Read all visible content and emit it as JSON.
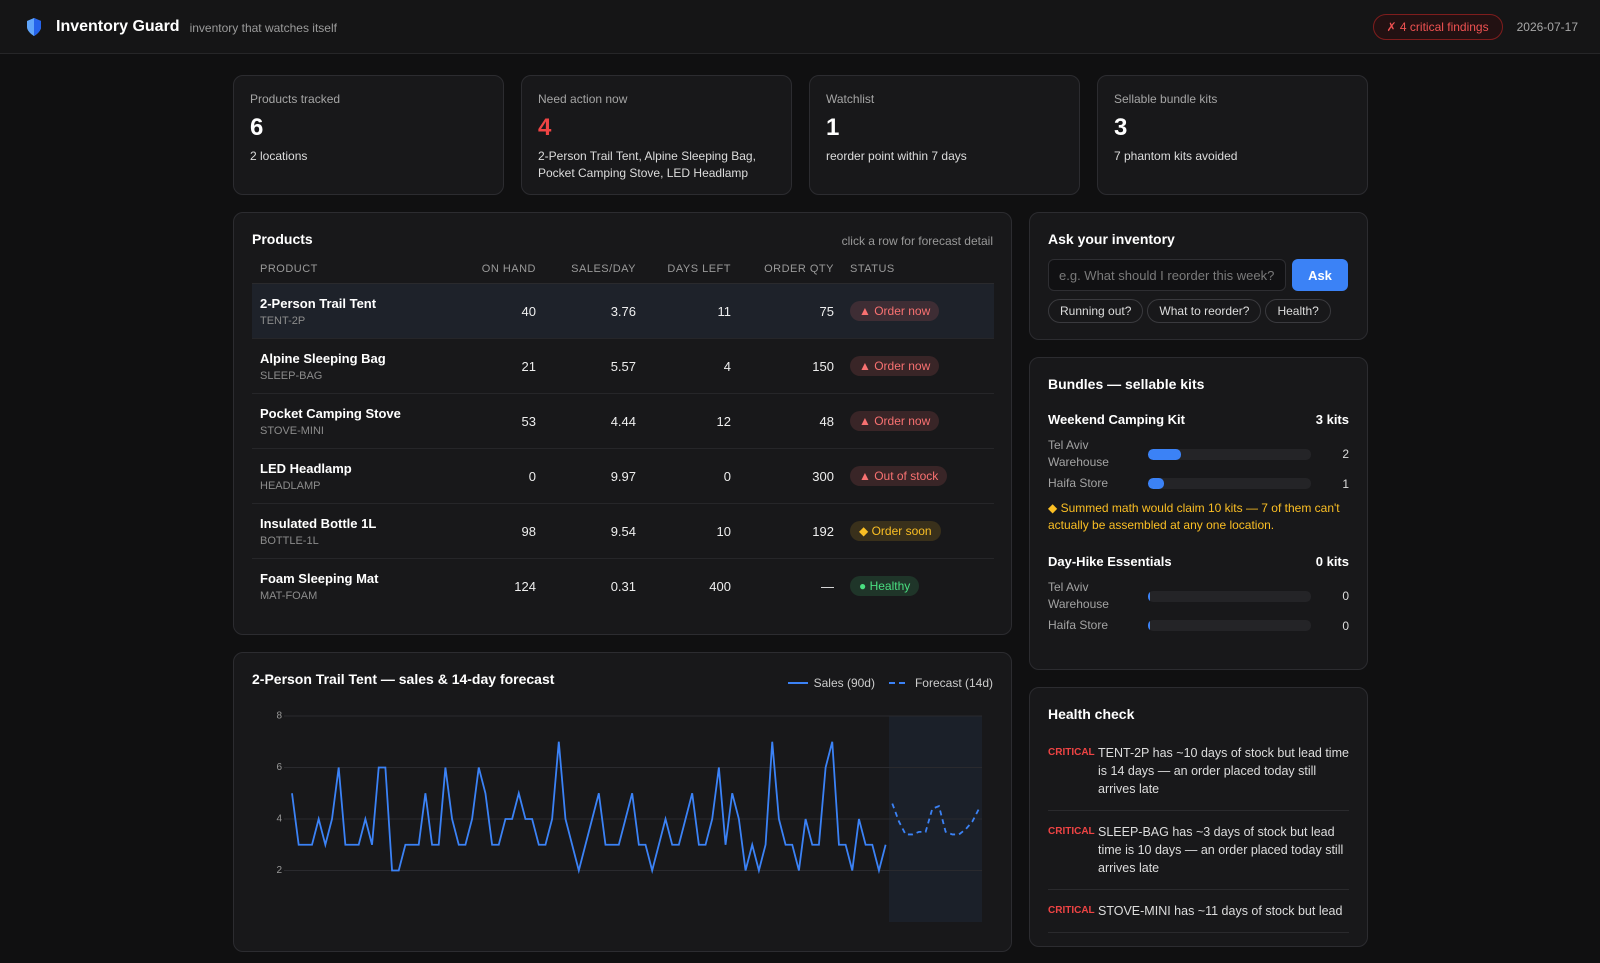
{
  "header": {
    "title": "Inventory Guard",
    "tagline": "inventory that watches itself",
    "alert": "✗ 4 critical findings",
    "date": "2026-07-17"
  },
  "stats": [
    {
      "label": "Products tracked",
      "value": 6,
      "detail": "2 locations"
    },
    {
      "label": "Need action now",
      "value": 4,
      "value_color": "#ef4444",
      "detail": "2-Person Trail Tent, Alpine Sleeping Bag, Pocket Camping Stove, LED Headlamp"
    },
    {
      "label": "Watchlist",
      "value": 1,
      "detail": "reorder point within 7 days"
    },
    {
      "label": "Sellable bundle kits",
      "value": 3,
      "detail": "7 phantom kits avoided"
    }
  ],
  "products": {
    "title": "Products",
    "hint": "click a row for forecast detail",
    "columns": [
      "PRODUCT",
      "ON HAND",
      "SALES/DAY",
      "DAYS LEFT",
      "ORDER QTY",
      "STATUS"
    ],
    "rows": [
      {
        "name": "2-Person Trail Tent",
        "sku": "TENT-2P",
        "on_hand": 40,
        "sales_per_day": 3.76,
        "days_left": 11,
        "order_qty": 75,
        "status": "▲ Order now",
        "status_color": "#f87171"
      },
      {
        "name": "Alpine Sleeping Bag",
        "sku": "SLEEP-BAG",
        "on_hand": 21,
        "sales_per_day": 5.57,
        "days_left": 4,
        "order_qty": 150,
        "status": "▲ Order now",
        "status_color": "#f87171"
      },
      {
        "name": "Pocket Camping Stove",
        "sku": "STOVE-MINI",
        "on_hand": 53,
        "sales_per_day": 4.44,
        "days_left": 12,
        "order_qty": 48,
        "status": "▲ Order now",
        "status_color": "#f87171"
      },
      {
        "name": "LED Headlamp",
        "sku": "HEADLAMP",
        "on_hand": 0,
        "sales_per_day": 9.97,
        "days_left": 0,
        "order_qty": 300,
        "status": "▲ Out of stock",
        "status_color": "#f87171"
      },
      {
        "name": "Insulated Bottle 1L",
        "sku": "BOTTLE-1L",
        "on_hand": 98,
        "sales_per_day": 9.54,
        "days_left": 10,
        "order_qty": 192,
        "status": "◆ Order soon",
        "status_color": "#fbbf24"
      },
      {
        "name": "Foam Sleeping Mat",
        "sku": "MAT-FOAM",
        "on_hand": 124,
        "sales_per_day": 0.31,
        "days_left": 400,
        "order_qty": "—",
        "status": "● Healthy",
        "status_color": "#4ade80"
      }
    ]
  },
  "chart_data": {
    "type": "line",
    "title": "2-Person Trail Tent — sales & 14-day forecast",
    "ylim": [
      0,
      8
    ],
    "yticks": [
      2,
      4,
      6,
      8
    ],
    "grid": true,
    "series": [
      {
        "name": "Sales (90d)",
        "color": "#3b82f6",
        "values": [
          5,
          3,
          3,
          3,
          4,
          3,
          4,
          6,
          3,
          3,
          3,
          4,
          3,
          6,
          6,
          2,
          2,
          3,
          3,
          3,
          5,
          3,
          3,
          6,
          4,
          3,
          3,
          4,
          6,
          5,
          3,
          3,
          4,
          4,
          5,
          4,
          4,
          3,
          3,
          4,
          7,
          4,
          3,
          2,
          3,
          4,
          5,
          3,
          3,
          3,
          4,
          5,
          3,
          3,
          2,
          3,
          4,
          3,
          3,
          4,
          5,
          3,
          3,
          4,
          6,
          3,
          5,
          4,
          2,
          3,
          2,
          3,
          7,
          4,
          3,
          3,
          2,
          4,
          3,
          3,
          6,
          7,
          3,
          3,
          2,
          4,
          3,
          3,
          2,
          3
        ]
      },
      {
        "name": "Forecast (14d)",
        "color": "#3b82f6",
        "dashed": true,
        "values": [
          4.6,
          3.9,
          3.4,
          3.4,
          3.5,
          3.5,
          4.4,
          4.5,
          3.5,
          3.4,
          3.4,
          3.6,
          3.9,
          4.4
        ]
      }
    ]
  },
  "ask": {
    "title": "Ask your inventory",
    "placeholder": "e.g. What should I reorder this week?",
    "button": "Ask",
    "chips": [
      "Running out?",
      "What to reorder?",
      "Health?"
    ]
  },
  "bundles": {
    "title": "Bundles — sellable kits",
    "xlim": [
      0,
      10
    ],
    "kits": [
      {
        "name": "Weekend Camping Kit",
        "total": "3 kits",
        "locations": [
          {
            "name": "Tel Aviv Warehouse",
            "value": 2
          },
          {
            "name": "Haifa Store",
            "value": 1
          }
        ],
        "note": "◆ Summed math would claim 10 kits — 7 of them can't actually be assembled at any one location."
      },
      {
        "name": "Day-Hike Essentials",
        "total": "0 kits",
        "locations": [
          {
            "name": "Tel Aviv Warehouse",
            "value": 0
          },
          {
            "name": "Haifa Store",
            "value": 0
          }
        ]
      }
    ]
  },
  "health": {
    "title": "Health check",
    "items": [
      {
        "level": "CRITICAL",
        "text": "TENT-2P has ~10 days of stock but lead time is 14 days — an order placed today still arrives late"
      },
      {
        "level": "CRITICAL",
        "text": "SLEEP-BAG has ~3 days of stock but lead time is 10 days — an order placed today still arrives late"
      },
      {
        "level": "CRITICAL",
        "text": "STOVE-MINI has ~11 days of stock but lead"
      }
    ]
  }
}
